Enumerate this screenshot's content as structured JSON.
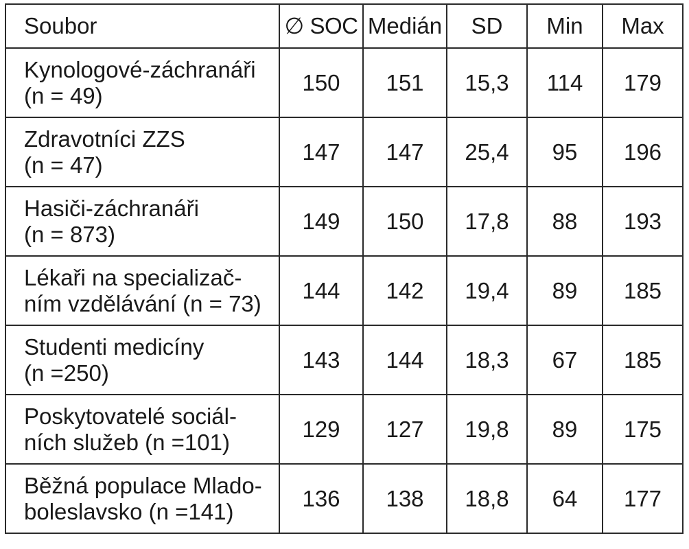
{
  "table": {
    "headers": {
      "name": "Soubor",
      "soc": "∅ SOC",
      "median": "Medián",
      "sd": "SD",
      "min": "Min",
      "max": "Max"
    },
    "rows": [
      {
        "name_line1": "Kynologové-záchranáři",
        "name_line2": "(n = 49)",
        "soc": "150",
        "median": "151",
        "sd": "15,3",
        "min": "114",
        "max": "179"
      },
      {
        "name_line1": "Zdravotníci ZZS",
        "name_line2": "(n = 47)",
        "soc": "147",
        "median": "147",
        "sd": "25,4",
        "min": "95",
        "max": "196"
      },
      {
        "name_line1": "Hasiči-záchranáři",
        "name_line2": "(n = 873)",
        "soc": "149",
        "median": "150",
        "sd": "17,8",
        "min": "88",
        "max": "193"
      },
      {
        "name_line1": "Lékaři na specializač-",
        "name_line2": "ním vzdělávání (n = 73)",
        "soc": "144",
        "median": "142",
        "sd": "19,4",
        "min": "89",
        "max": "185"
      },
      {
        "name_line1": "Studenti medicíny",
        "name_line2": "(n =250)",
        "soc": "143",
        "median": "144",
        "sd": "18,3",
        "min": "67",
        "max": "185"
      },
      {
        "name_line1": "Poskytovatelé sociál-",
        "name_line2": "ních služeb (n =101)",
        "soc": "129",
        "median": "127",
        "sd": "19,8",
        "min": "89",
        "max": "175"
      },
      {
        "name_line1": "Běžná populace Mlado-",
        "name_line2": "boleslavsko (n =141)",
        "soc": "136",
        "median": "138",
        "sd": "18,8",
        "min": "64",
        "max": "177"
      }
    ]
  }
}
